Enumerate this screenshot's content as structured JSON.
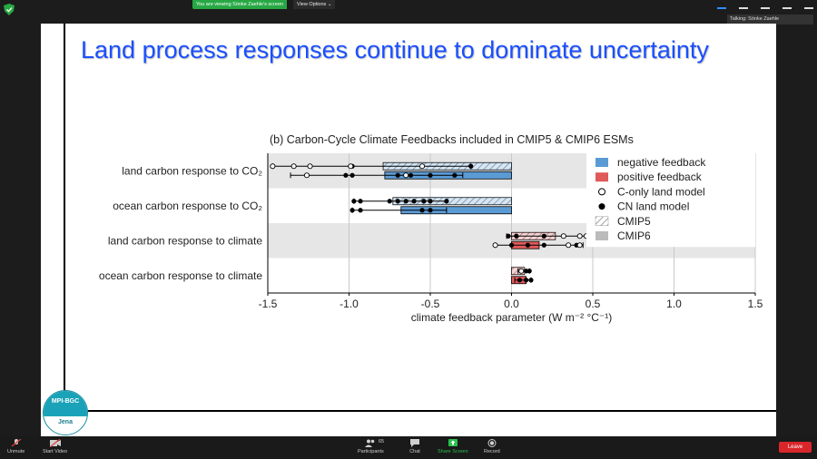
{
  "zoom": {
    "viewing_text": "You are viewing Sönke Zaehle's screen",
    "view_options": "View Options",
    "talking": "Talking: Sönke Zaehle",
    "toolbar": {
      "unmute": "Unmute",
      "start_video": "Start Video",
      "participants": "Participants",
      "participants_count": "65",
      "chat": "Chat",
      "share_screen": "Share Screen",
      "record": "Record",
      "leave": "Leave"
    }
  },
  "slide": {
    "title": "Land process responses continue to dominate uncertainty",
    "logo_top": "MPI-BGC",
    "logo_bottom": "Jena"
  },
  "chart_data": {
    "type": "bar",
    "title": "(b) Carbon-Cycle Climate Feedbacks included in CMIP5 & CMIP6 ESMs",
    "xlabel": "climate feedback parameter (W m⁻² °C⁻¹)",
    "xlim": [
      -1.5,
      1.5
    ],
    "xticks": [
      -1.5,
      -1.0,
      -0.5,
      0.0,
      0.5,
      1.0,
      1.5
    ],
    "xtick_labels": [
      "-1.5",
      "-1.0",
      "-0.5",
      "0.0",
      "0.5",
      "1.0",
      "1.5"
    ],
    "orientation": "horizontal",
    "categories": [
      "land carbon response to CO₂",
      "ocean carbon response to CO₂",
      "land carbon response to climate",
      "ocean carbon response to climate"
    ],
    "series": [
      {
        "name": "CMIP5",
        "values": [
          -0.79,
          -0.73,
          0.27,
          0.08
        ],
        "range": [
          [
            -1.47,
            -0.25
          ],
          [
            -0.97,
            -0.4
          ],
          [
            -0.03,
            0.58
          ],
          [
            0.04,
            0.11
          ]
        ],
        "c_only": [
          [
            -1.47,
            -1.34,
            -1.24,
            -0.99,
            -0.55
          ],
          [],
          [
            0.32,
            0.42,
            0.46,
            0.58
          ],
          [
            0.06
          ]
        ],
        "cn": [
          [
            -0.98,
            -0.25
          ],
          [
            -0.97,
            -0.93,
            -0.75,
            -0.7,
            -0.65,
            -0.6,
            -0.54,
            -0.5,
            -0.4
          ],
          [
            -0.02,
            0.03,
            0.2
          ],
          [
            0.09,
            0.11
          ]
        ]
      },
      {
        "name": "CMIP6",
        "values": [
          -0.78,
          -0.68,
          0.17,
          0.09
        ],
        "range": [
          [
            -1.36,
            -0.3
          ],
          [
            -0.98,
            -0.4
          ],
          [
            -0.1,
            0.44
          ],
          [
            0.02,
            0.12
          ]
        ],
        "c_only": [
          [
            -1.26,
            -0.65
          ],
          [],
          [
            -0.1,
            0.35,
            0.42
          ],
          []
        ],
        "cn": [
          [
            -1.02,
            -0.98,
            -0.7,
            -0.62,
            -0.5,
            -0.35
          ],
          [
            -0.98,
            -0.93,
            -0.55,
            -0.5
          ],
          [
            0.0,
            0.1,
            0.2,
            0.4
          ],
          [
            0.05,
            0.09,
            0.12
          ]
        ]
      }
    ],
    "legend": {
      "position": "top-right",
      "entries": [
        "negative feedback",
        "positive feedback",
        "C-only land model",
        "CN land model",
        "CMIP5",
        "CMIP6"
      ]
    },
    "colors": {
      "negative": "#5b9bd5",
      "positive": "#e05a5a",
      "band": "#e6e6e6"
    },
    "grid": true
  }
}
